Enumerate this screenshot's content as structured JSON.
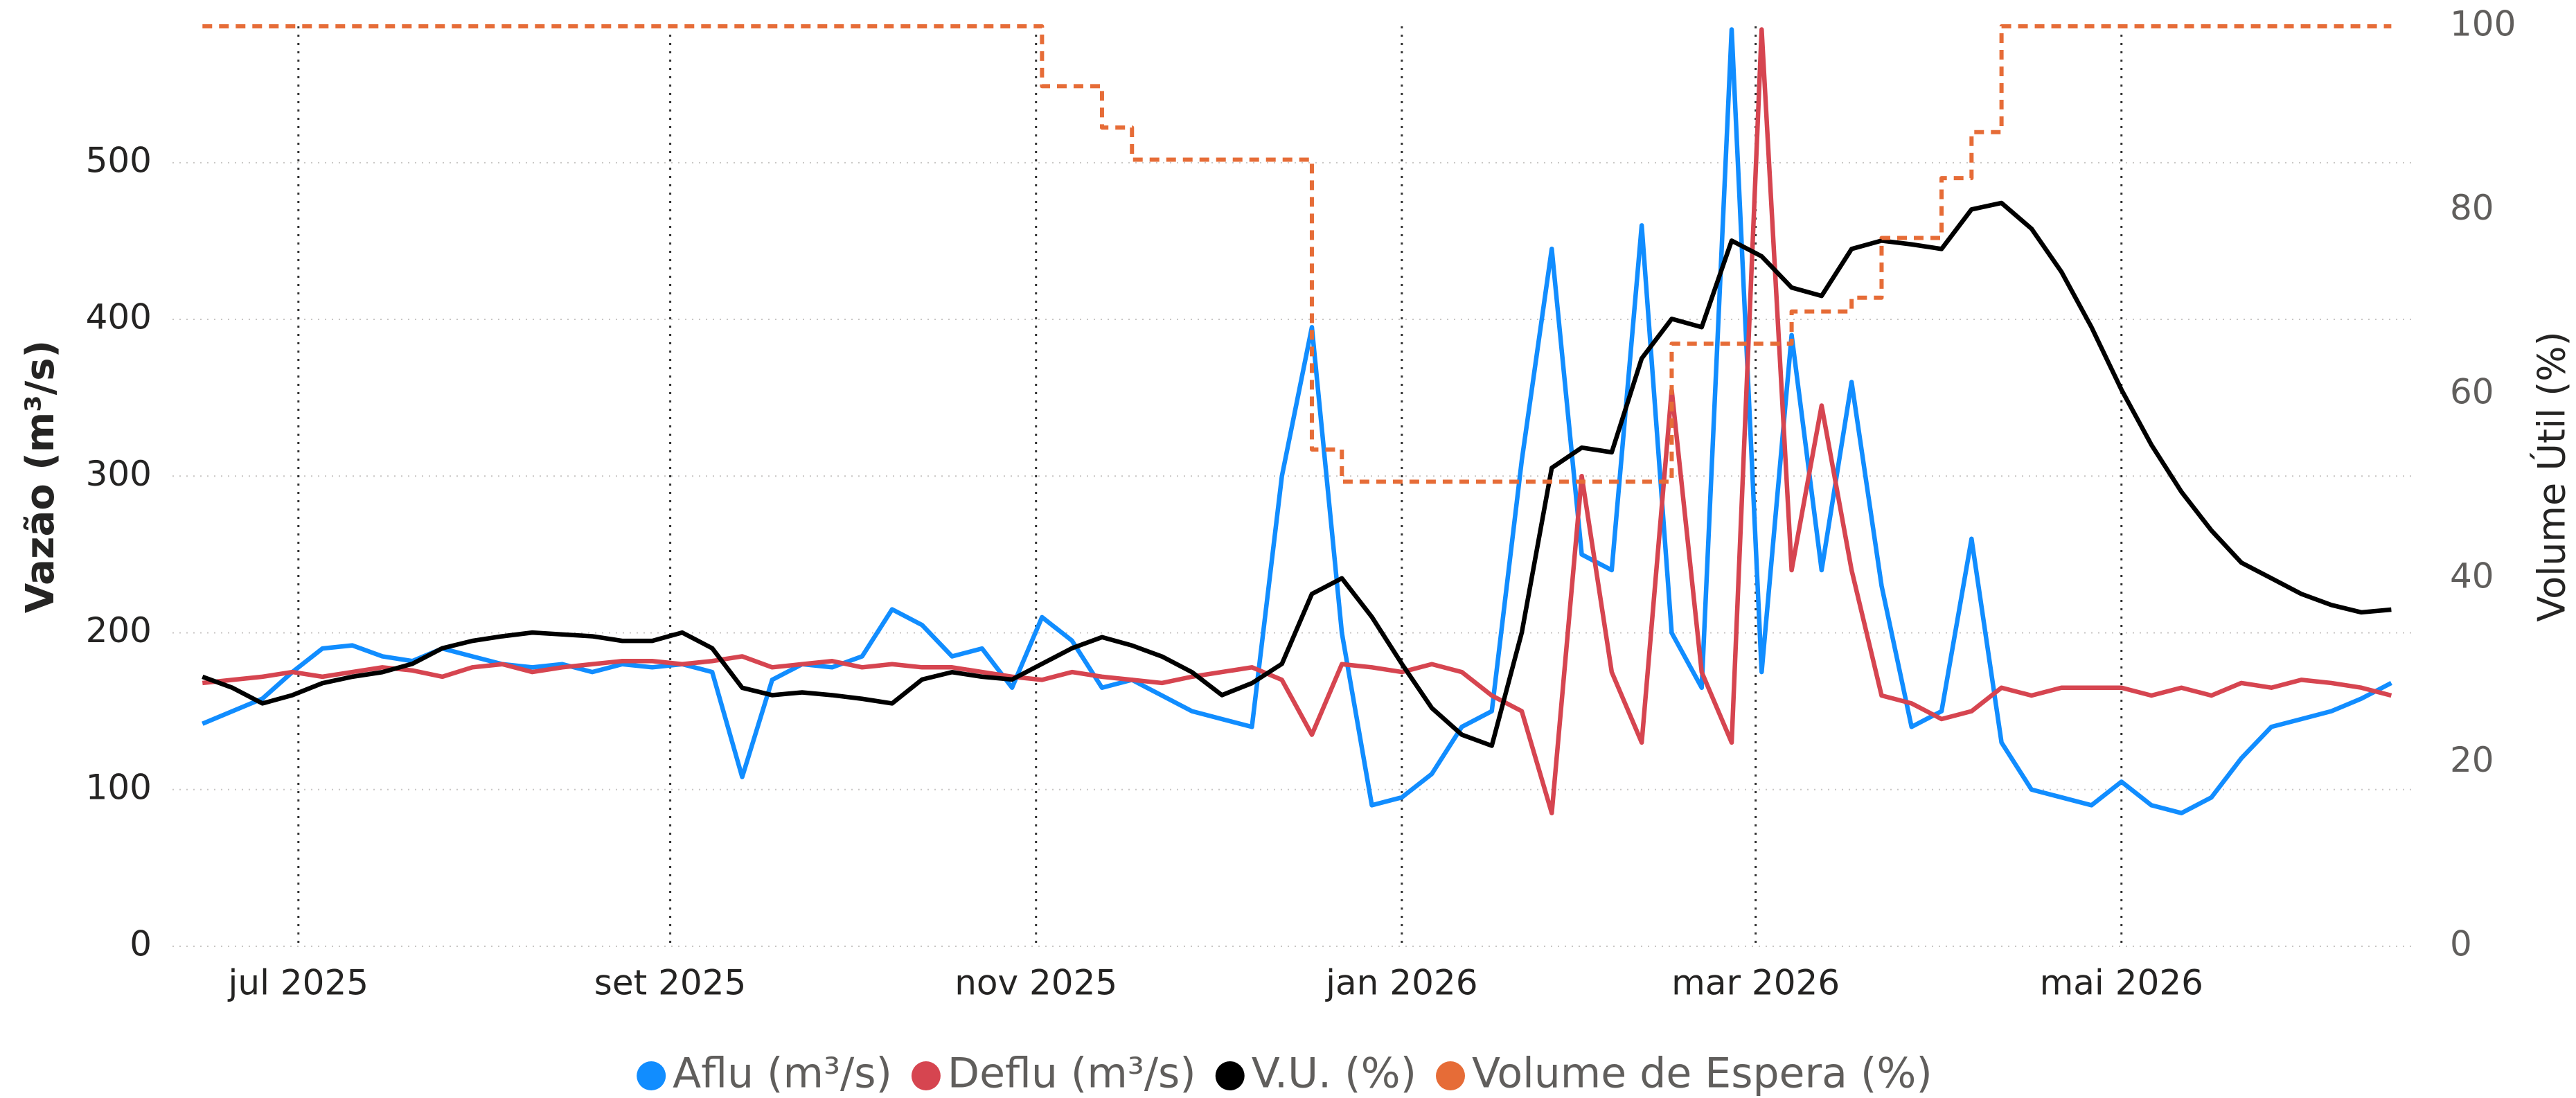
{
  "chart_data": {
    "type": "line",
    "x": [
      "2025-06-15",
      "2025-06-20",
      "2025-06-25",
      "2025-06-30",
      "2025-07-05",
      "2025-07-10",
      "2025-07-15",
      "2025-07-20",
      "2025-07-25",
      "2025-07-30",
      "2025-08-04",
      "2025-08-09",
      "2025-08-14",
      "2025-08-19",
      "2025-08-24",
      "2025-08-29",
      "2025-09-03",
      "2025-09-08",
      "2025-09-13",
      "2025-09-18",
      "2025-09-23",
      "2025-09-28",
      "2025-10-03",
      "2025-10-08",
      "2025-10-13",
      "2025-10-18",
      "2025-10-23",
      "2025-10-28",
      "2025-11-02",
      "2025-11-07",
      "2025-11-12",
      "2025-11-17",
      "2025-11-22",
      "2025-11-27",
      "2025-12-02",
      "2025-12-07",
      "2025-12-12",
      "2025-12-17",
      "2025-12-22",
      "2025-12-27",
      "2026-01-01",
      "2026-01-06",
      "2026-01-11",
      "2026-01-16",
      "2026-01-21",
      "2026-01-26",
      "2026-01-31",
      "2026-02-05",
      "2026-02-10",
      "2026-02-15",
      "2026-02-20",
      "2026-02-25",
      "2026-03-02",
      "2026-03-07",
      "2026-03-12",
      "2026-03-17",
      "2026-03-22",
      "2026-03-27",
      "2026-04-01",
      "2026-04-06",
      "2026-04-11",
      "2026-04-16",
      "2026-04-21",
      "2026-04-26",
      "2026-05-01",
      "2026-05-06",
      "2026-05-11",
      "2026-05-16",
      "2026-05-21",
      "2026-05-26",
      "2026-05-31",
      "2026-06-05",
      "2026-06-10",
      "2026-06-15"
    ],
    "series": [
      {
        "name": "Aflu (m³/s)",
        "color": "#118dff",
        "axis": "y",
        "line_style": "solid",
        "values": [
          142,
          150,
          158,
          175,
          190,
          192,
          185,
          182,
          190,
          185,
          180,
          178,
          180,
          175,
          180,
          178,
          180,
          175,
          108,
          170,
          180,
          178,
          185,
          215,
          205,
          185,
          190,
          165,
          210,
          195,
          165,
          170,
          160,
          150,
          145,
          140,
          300,
          395,
          200,
          90,
          95,
          110,
          140,
          150,
          310,
          445,
          250,
          240,
          460,
          200,
          165,
          585,
          175,
          390,
          240,
          360,
          230,
          140,
          150,
          260,
          130,
          100,
          95,
          90,
          105,
          90,
          85,
          95,
          120,
          140,
          145,
          150,
          158,
          168
        ]
      },
      {
        "name": "Deflu (m³/s)",
        "color": "#d64550",
        "axis": "y",
        "line_style": "solid",
        "values": [
          168,
          170,
          172,
          175,
          172,
          175,
          178,
          176,
          172,
          178,
          180,
          175,
          178,
          180,
          182,
          182,
          180,
          182,
          185,
          178,
          180,
          182,
          178,
          180,
          178,
          178,
          175,
          172,
          170,
          175,
          172,
          170,
          168,
          172,
          175,
          178,
          170,
          135,
          180,
          178,
          175,
          180,
          175,
          160,
          150,
          85,
          300,
          175,
          130,
          355,
          175,
          130,
          585,
          240,
          345,
          240,
          160,
          155,
          145,
          150,
          165,
          160,
          165,
          165,
          165,
          160,
          165,
          160,
          168,
          165,
          170,
          168,
          165,
          160
        ]
      },
      {
        "name": "V.U. (%)",
        "color": "#000000",
        "axis": "y2",
        "line_style": "solid",
        "values": [
          29.3,
          28.1,
          26.4,
          27.3,
          28.6,
          29.3,
          29.8,
          30.7,
          32.4,
          33.2,
          33.7,
          34.1,
          33.9,
          33.7,
          33.2,
          33.2,
          34.1,
          32.4,
          28.1,
          27.3,
          27.6,
          27.3,
          26.9,
          26.4,
          29.0,
          29.8,
          29.3,
          29.0,
          30.7,
          32.4,
          33.6,
          32.7,
          31.5,
          29.8,
          27.3,
          28.6,
          30.7,
          38.3,
          40.0,
          35.8,
          30.7,
          25.9,
          23.0,
          21.8,
          34.1,
          52.0,
          54.2,
          53.7,
          63.9,
          68.2,
          67.3,
          76.7,
          75.0,
          71.6,
          70.7,
          75.8,
          76.7,
          76.3,
          75.8,
          80.1,
          80.8,
          78.0,
          73.3,
          67.3,
          60.5,
          54.5,
          49.4,
          45.2,
          41.7,
          40.0,
          38.3,
          37.1,
          36.3,
          36.6
        ]
      },
      {
        "name": "Volume de Espera (%)",
        "color": "#e66c37",
        "axis": "y2",
        "line_style": "dashed",
        "drawstyle": "steps-post",
        "values": [
          100,
          100,
          100,
          100,
          100,
          100,
          100,
          100,
          100,
          100,
          100,
          100,
          100,
          100,
          100,
          100,
          100,
          100,
          100,
          100,
          100,
          100,
          100,
          100,
          100,
          100,
          100,
          100,
          93.5,
          93.5,
          89,
          85.5,
          85.5,
          85.5,
          85.5,
          85.5,
          85.5,
          54,
          50.5,
          50.5,
          50.5,
          50.5,
          50.5,
          50.5,
          50.5,
          50.5,
          50.5,
          50.5,
          50.5,
          65.5,
          65.5,
          65.5,
          65.5,
          69,
          69,
          70.5,
          77,
          77,
          83.5,
          88.5,
          100,
          100,
          100,
          100,
          100,
          100,
          100,
          100,
          100,
          100,
          100,
          100,
          100,
          100
        ]
      }
    ],
    "xlim": [
      "2025-06-10",
      "2026-06-19"
    ],
    "xticks": [
      {
        "value": "2025-07-01",
        "label": "jul 2025"
      },
      {
        "value": "2025-09-01",
        "label": "set 2025"
      },
      {
        "value": "2025-11-01",
        "label": "nov 2025"
      },
      {
        "value": "2026-01-01",
        "label": "jan 2026"
      },
      {
        "value": "2026-03-01",
        "label": "mar 2026"
      },
      {
        "value": "2026-05-01",
        "label": "mai 2026"
      }
    ],
    "ylabel": "Vazão (m³/s)",
    "ylim": [
      0,
      587
    ],
    "yticks": [
      0,
      100,
      200,
      300,
      400,
      500
    ],
    "y2label": "Volume Útil (%)",
    "y2lim": [
      0,
      100
    ],
    "y2ticks": [
      0,
      20,
      40,
      60,
      80,
      100
    ],
    "grid": true,
    "legend": "bottom"
  }
}
